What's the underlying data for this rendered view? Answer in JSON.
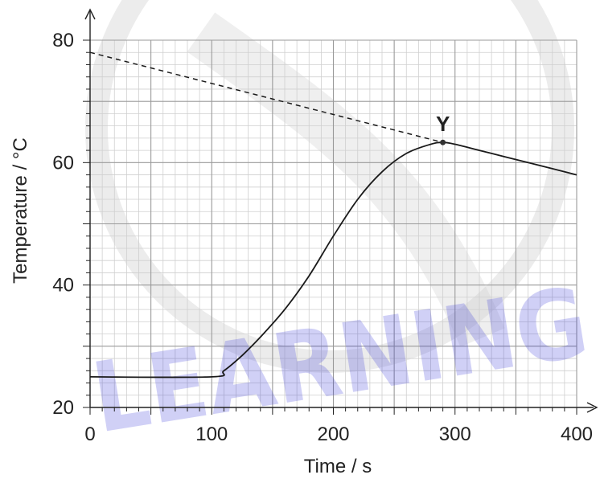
{
  "chart_data": {
    "type": "line",
    "xlabel": "Time / s",
    "ylabel": "Temperature / °C",
    "xlim": [
      0,
      400
    ],
    "ylim": [
      20,
      80
    ],
    "x_ticks": [
      0,
      100,
      200,
      300,
      400
    ],
    "y_ticks": [
      20,
      40,
      60,
      80
    ],
    "grid": true,
    "series": [
      {
        "style": "solid",
        "x": [
          0,
          100,
          110,
          125,
          140,
          160,
          180,
          200,
          220,
          240,
          260,
          280,
          290,
          300,
          320,
          340,
          360,
          380,
          400
        ],
        "y": [
          25,
          25,
          26,
          28.5,
          31.5,
          36,
          41.5,
          48,
          54,
          58.5,
          61.5,
          63,
          63.3,
          63,
          62,
          61,
          60,
          59,
          58
        ]
      },
      {
        "style": "dashed",
        "x": [
          0,
          290
        ],
        "y": [
          78,
          63.3
        ]
      }
    ],
    "annotations": [
      {
        "label": "Y",
        "x": 290,
        "y": 63.3
      }
    ]
  },
  "watermark": {
    "text": "LEARNING",
    "color": "#2b2bd6"
  }
}
